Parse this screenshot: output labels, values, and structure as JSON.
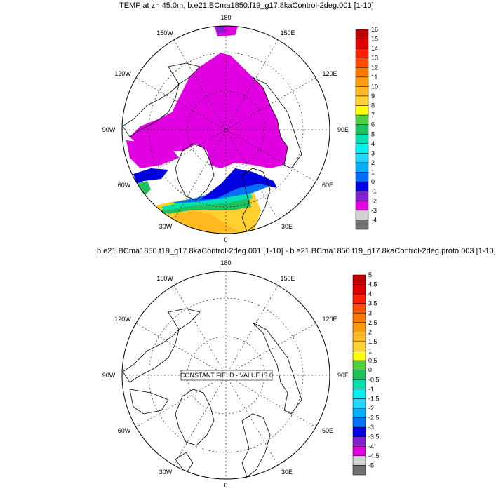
{
  "panel1": {
    "title": "TEMP at z=  45.0m, b.e21.BCma1850.f19_g17.8kaControl-2deg.001 [1-10]",
    "lon_labels": {
      "top": "180",
      "l150": "150W",
      "r150": "150E",
      "l120": "120W",
      "r120": "120E",
      "left": "90W",
      "right": "90E",
      "l60": "60W",
      "r60": "60E",
      "l30": "30W",
      "r30": "30E",
      "bottom": "0"
    },
    "colorbar": {
      "labels": [
        "16",
        "15",
        "14",
        "13",
        "12",
        "11",
        "10",
        "9",
        "8",
        "7",
        "6",
        "5",
        "4",
        "3",
        "2",
        "1",
        "0",
        "-1",
        "-2",
        "-3",
        "-4"
      ],
      "colors": [
        "#c00000",
        "#e00000",
        "#ff2000",
        "#ff5000",
        "#ff7800",
        "#ff9a10",
        "#ffb820",
        "#ffd030",
        "#ffff00",
        "#50d040",
        "#20c060",
        "#00e0b0",
        "#00f0f0",
        "#20d8ff",
        "#00b0ff",
        "#0070ff",
        "#0000e0",
        "#8020d0",
        "#e000e0",
        "#d0d0d0",
        "#707070"
      ]
    }
  },
  "panel2": {
    "title": "b.e21.BCma1850.f19_g17.8kaControl-2deg.001 [1-10] - b.e21.BCma1850.f19_g17.8kaControl-2deg.proto.003 [1-10]",
    "lon_labels": {
      "top": "180",
      "l150": "150W",
      "r150": "150E",
      "l120": "120W",
      "r120": "120E",
      "left": "90W",
      "right": "90E",
      "l60": "60W",
      "r60": "60E",
      "l30": "30W",
      "r30": "30E",
      "bottom": "0"
    },
    "constant_field_text": "CONSTANT FIELD - VALUE IS 0",
    "colorbar": {
      "labels": [
        "5",
        "4.5",
        "4",
        "3.5",
        "3",
        "2.5",
        "2",
        "1.5",
        "1",
        "0.5",
        "0",
        "-0.5",
        "-1",
        "-1.5",
        "-2",
        "-2.5",
        "-3",
        "-3.5",
        "-4",
        "-4.5",
        "-5"
      ],
      "colors": [
        "#c00000",
        "#e00000",
        "#ff2000",
        "#ff5000",
        "#ff7800",
        "#ff9a10",
        "#ffb820",
        "#ffd030",
        "#ffff00",
        "#50d040",
        "#20c060",
        "#00e0b0",
        "#00f0f0",
        "#20d8ff",
        "#00b0ff",
        "#0070ff",
        "#0000e0",
        "#8020d0",
        "#e000e0",
        "#d0d0d0",
        "#707070"
      ]
    }
  }
}
